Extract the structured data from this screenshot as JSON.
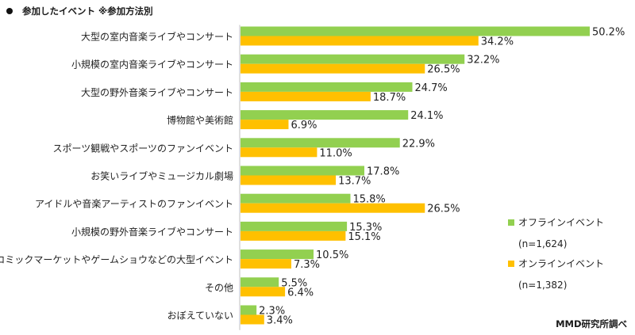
{
  "title": "参加したイベント ※参加方法別",
  "source": "MMD研究所調べ",
  "chart_data": {
    "type": "bar",
    "orientation": "horizontal",
    "title": "参加したイベント ※参加方法別",
    "categories": [
      "大型の室内音楽ライブやコンサート",
      "小規模の室内音楽ライブやコンサート",
      "大型の野外音楽ライブやコンサート",
      "博物館や美術館",
      "スポーツ観戦やスポーツのファンイベント",
      "お笑いライブやミュージカル劇場",
      "アイドルや音楽アーティストのファンイベント",
      "小規模の野外音楽ライブやコンサート",
      "コミックマーケットやゲームショウなどの大型イベント",
      "その他",
      "おぼえていない"
    ],
    "series": [
      {
        "name": "オフラインイベント",
        "n_label": "(n=1,624)",
        "color": "#92d050",
        "values": [
          50.2,
          32.2,
          24.7,
          24.1,
          22.9,
          17.8,
          15.8,
          15.3,
          10.5,
          5.5,
          2.3
        ],
        "labels": [
          "50.2%",
          "32.2%",
          "24.7%",
          "24.1%",
          "22.9%",
          "17.8%",
          "15.8%",
          "15.3%",
          "10.5%",
          "5.5%",
          "2.3%"
        ]
      },
      {
        "name": "オンラインイベント",
        "n_label": "(n=1,382)",
        "color": "#ffc000",
        "values": [
          34.2,
          26.5,
          18.7,
          6.9,
          11.0,
          13.7,
          26.5,
          15.1,
          7.3,
          6.4,
          3.4
        ],
        "labels": [
          "34.2%",
          "26.5%",
          "18.7%",
          "6.9%",
          "11.0%",
          "13.7%",
          "26.5%",
          "15.1%",
          "7.3%",
          "6.4%",
          "3.4%"
        ]
      }
    ],
    "xlim": [
      0,
      50.2
    ],
    "legend_position": "right",
    "grid": false,
    "xlabel": "",
    "ylabel": ""
  }
}
